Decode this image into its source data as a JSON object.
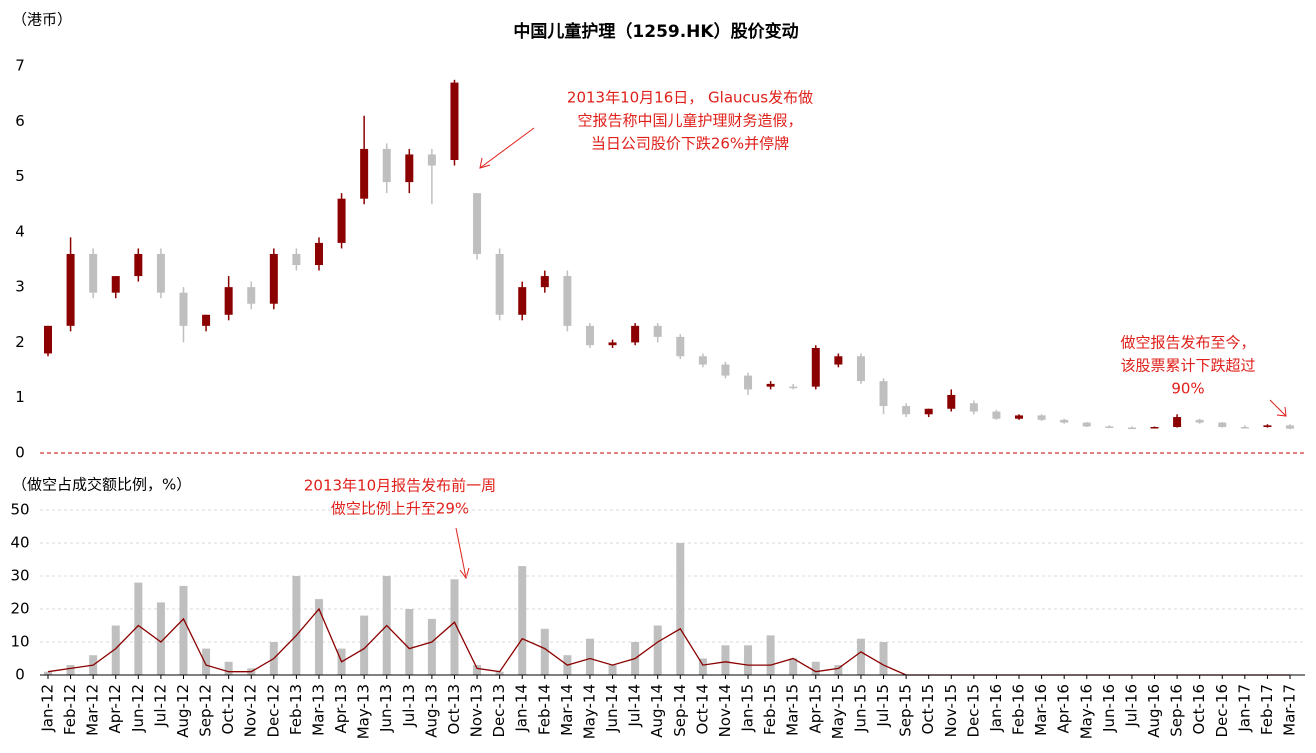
{
  "chart_data": [
    {
      "type": "candlestick",
      "title": "中国儿童护理（1259.HK）股价变动",
      "y_label": "（港币）",
      "open": [
        1.8,
        2.3,
        3.6,
        2.9,
        3.2,
        3.6,
        2.9,
        2.3,
        2.5,
        3.0,
        2.7,
        3.6,
        3.4,
        3.8,
        4.6,
        5.5,
        4.9,
        5.4,
        5.3,
        4.7,
        3.6,
        2.5,
        3.0,
        3.2,
        2.3,
        1.95,
        2.0,
        2.3,
        2.1,
        1.75,
        1.6,
        1.4,
        1.2,
        1.2,
        1.2,
        1.6,
        1.75,
        1.3,
        0.85,
        0.7,
        0.8,
        0.9,
        0.75,
        0.62,
        0.68,
        0.6,
        0.55,
        0.48,
        0.46,
        0.46,
        0.47,
        0.6,
        0.55,
        0.47,
        0.47,
        0.5
      ],
      "high": [
        2.3,
        3.9,
        3.7,
        3.2,
        3.7,
        3.7,
        3.0,
        2.5,
        3.2,
        3.1,
        3.7,
        3.7,
        3.9,
        4.7,
        6.1,
        5.6,
        5.5,
        5.5,
        6.75,
        4.7,
        3.7,
        3.1,
        3.3,
        3.3,
        2.35,
        2.05,
        2.35,
        2.35,
        2.15,
        1.8,
        1.65,
        1.45,
        1.3,
        1.25,
        1.95,
        1.8,
        1.8,
        1.35,
        0.9,
        0.8,
        1.15,
        0.95,
        0.78,
        0.7,
        0.7,
        0.62,
        0.56,
        0.5,
        0.48,
        0.48,
        0.7,
        0.62,
        0.56,
        0.5,
        0.52,
        0.52
      ],
      "low": [
        1.75,
        2.2,
        2.8,
        2.8,
        3.1,
        2.8,
        2.0,
        2.2,
        2.4,
        2.6,
        2.6,
        3.3,
        3.3,
        3.7,
        4.5,
        4.7,
        4.7,
        4.5,
        5.2,
        3.5,
        2.4,
        2.4,
        2.9,
        2.2,
        1.9,
        1.9,
        1.95,
        2.0,
        1.7,
        1.55,
        1.35,
        1.05,
        1.15,
        1.15,
        1.15,
        1.55,
        1.25,
        0.7,
        0.65,
        0.65,
        0.75,
        0.7,
        0.6,
        0.6,
        0.58,
        0.53,
        0.47,
        0.45,
        0.44,
        0.45,
        0.46,
        0.53,
        0.46,
        0.45,
        0.46,
        0.43
      ],
      "close": [
        2.3,
        3.6,
        2.9,
        3.2,
        3.6,
        2.9,
        2.3,
        2.5,
        3.0,
        2.7,
        3.6,
        3.4,
        3.8,
        4.6,
        5.5,
        4.9,
        5.4,
        5.2,
        6.7,
        3.6,
        2.5,
        3.0,
        3.2,
        2.3,
        1.95,
        2.0,
        2.3,
        2.1,
        1.75,
        1.6,
        1.4,
        1.15,
        1.25,
        1.2,
        1.9,
        1.75,
        1.3,
        0.85,
        0.7,
        0.8,
        1.05,
        0.75,
        0.62,
        0.68,
        0.6,
        0.55,
        0.48,
        0.46,
        0.46,
        0.47,
        0.65,
        0.55,
        0.47,
        0.47,
        0.5,
        0.44
      ],
      "up_color": "#8b0000",
      "down_color": "#bfbfbf",
      "ylim": [
        0,
        7.2
      ],
      "yticks": [
        0,
        1,
        2,
        3,
        4,
        5,
        6,
        7
      ],
      "annotations": [
        {
          "text": [
            "2013年10月16日， Glaucus发布做",
            "空报告称中国儿童护理财务造假，",
            "当日公司股价下跌26%并停牌"
          ]
        },
        {
          "text": [
            "做空报告发布至今，",
            "该股票累计下跌超过",
            "90%"
          ]
        }
      ]
    },
    {
      "type": "bar",
      "y_label": "（做空占成交额比例，%）",
      "categories": [
        "Jan-12",
        "Feb-12",
        "Mar-12",
        "Apr-12",
        "Jun-12",
        "Jul-12",
        "Aug-12",
        "Sep-12",
        "Oct-12",
        "Nov-12",
        "Dec-12",
        "Feb-13",
        "Mar-13",
        "Apr-13",
        "May-13",
        "Jun-13",
        "Jul-13",
        "Aug-13",
        "Oct-13",
        "Nov-13",
        "Dec-13",
        "Jan-14",
        "Feb-14",
        "Mar-14",
        "May-14",
        "Jun-14",
        "Jul-14",
        "Aug-14",
        "Sep-14",
        "Oct-14",
        "Nov-14",
        "Jan-15",
        "Feb-15",
        "Mar-15",
        "Apr-15",
        "May-15",
        "Jun-15",
        "Jul-15",
        "Sep-15",
        "Oct-15",
        "Nov-15",
        "Dec-15",
        "Jan-16",
        "Feb-16",
        "Mar-16",
        "Apr-16",
        "May-16",
        "Jun-16",
        "Jul-16",
        "Aug-16",
        "Sep-16",
        "Oct-16",
        "Dec-16",
        "Jan-17",
        "Feb-17",
        "Mar-17"
      ],
      "values": [
        1,
        3,
        6,
        15,
        28,
        22,
        27,
        8,
        4,
        2,
        10,
        30,
        23,
        8,
        18,
        30,
        20,
        17,
        29,
        3,
        1,
        33,
        14,
        6,
        11,
        3,
        10,
        15,
        40,
        5,
        9,
        9,
        12,
        5,
        4,
        3,
        11,
        10,
        0,
        0,
        0,
        0,
        0,
        0,
        0,
        0,
        0,
        0,
        0,
        0,
        0,
        0,
        0,
        0,
        0,
        0
      ],
      "line_values": [
        1,
        2,
        3,
        8,
        15,
        10,
        17,
        3,
        1,
        1,
        5,
        12,
        20,
        4,
        8,
        15,
        8,
        10,
        16,
        2,
        1,
        11,
        8,
        3,
        5,
        3,
        5,
        10,
        14,
        3,
        4,
        3,
        3,
        5,
        1,
        2,
        7,
        3,
        0,
        0,
        0,
        0,
        0,
        0,
        0,
        0,
        0,
        0,
        0,
        0,
        0,
        0,
        0,
        0,
        0,
        0
      ],
      "color": "#bfbfbf",
      "line_color": "#8b0000",
      "ylim": [
        0,
        50
      ],
      "yticks": [
        0,
        10,
        20,
        30,
        40,
        50
      ],
      "grid": true,
      "annotations": [
        {
          "text": [
            "2013年10月报告发布前一周",
            "做空比例上升至29%"
          ]
        }
      ]
    }
  ]
}
